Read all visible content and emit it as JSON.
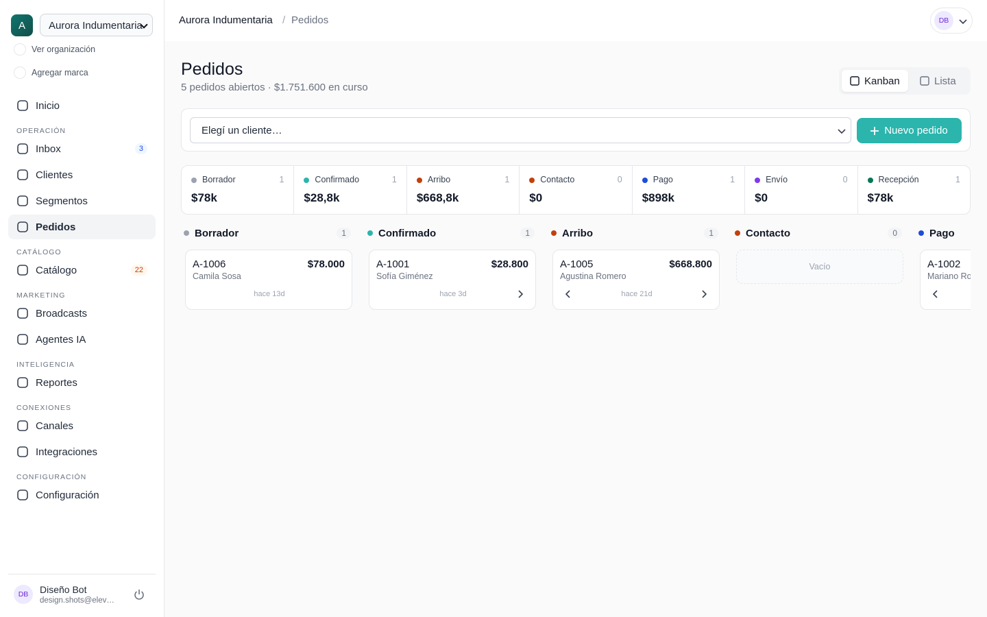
{
  "sidebar": {
    "org_initial": "A",
    "org_select": "Aurora Indumentaria",
    "links": [
      "Ver organización",
      "Agregar marca"
    ],
    "home": "Inicio",
    "sections": [
      {
        "title": "OPERACIÓN",
        "items": [
          {
            "label": "Inbox",
            "badge": 3
          },
          {
            "label": "Clientes"
          },
          {
            "label": "Segmentos"
          },
          {
            "label": "Pedidos",
            "active": true
          }
        ]
      },
      {
        "title": "CATÁLOGO",
        "items": [
          {
            "label": "Catálogo",
            "badge": 22
          }
        ]
      },
      {
        "title": "MARKETING",
        "items": [
          {
            "label": "Broadcasts"
          },
          {
            "label": "Agentes IA"
          }
        ]
      },
      {
        "title": "INTELIGENCIA",
        "items": [
          {
            "label": "Reportes"
          }
        ]
      },
      {
        "title": "CONEXIONES",
        "items": [
          {
            "label": "Canales"
          },
          {
            "label": "Integraciones"
          }
        ]
      },
      {
        "title": "CONFIGURACIÓN",
        "items": [
          {
            "label": "Configuración"
          }
        ]
      }
    ],
    "user": {
      "initials": "DB",
      "name": "Diseño Bot",
      "email": "design.shots@elev…"
    }
  },
  "header": {
    "breadcrumb": [
      "Aurora Indumentaria",
      "Pedidos"
    ],
    "avatar": "DB"
  },
  "page": {
    "title": "Pedidos",
    "subtitle": "5 pedidos abiertos · $1.751.600 en curso",
    "views": [
      "Kanban",
      "Lista"
    ]
  },
  "filter": {
    "placeholder": "Elegí un cliente…",
    "button": "Nuevo pedido"
  },
  "stages": [
    {
      "name": "Borrador",
      "color": "#9ca3af",
      "count": 1,
      "total": "$78k"
    },
    {
      "name": "Confirmado",
      "color": "#2bb5ad",
      "count": 1,
      "total": "$28,8k"
    },
    {
      "name": "Arribo",
      "color": "#c2410c",
      "count": 1,
      "total": "$668,8k"
    },
    {
      "name": "Contacto",
      "color": "#c2410c",
      "count": 0,
      "total": "$0"
    },
    {
      "name": "Pago",
      "color": "#1d4ed8",
      "count": 1,
      "total": "$898k"
    },
    {
      "name": "Envío",
      "color": "#7c3aed",
      "count": 0,
      "total": "$0"
    },
    {
      "name": "Recepción",
      "color": "#047857",
      "count": 1,
      "total": "$78k"
    }
  ],
  "columns": [
    {
      "name": "Borrador",
      "color": "#9ca3af",
      "count": 1,
      "cards": [
        {
          "id": "A-1006",
          "amount": "$78.000",
          "customer": "Camila Sosa",
          "age": "hace 13d"
        }
      ]
    },
    {
      "name": "Confirmado",
      "color": "#2bb5ad",
      "count": 1,
      "cards": [
        {
          "id": "A-1001",
          "amount": "$28.800",
          "customer": "Sofía Giménez",
          "age": "hace 3d"
        }
      ]
    },
    {
      "name": "Arribo",
      "color": "#c2410c",
      "count": 1,
      "cards": [
        {
          "id": "A-1005",
          "amount": "$668.800",
          "customer": "Agustina Romero",
          "age": "hace 21d"
        }
      ]
    },
    {
      "name": "Contacto",
      "color": "#c2410c",
      "count": 0,
      "empty": "Vacío",
      "cards": []
    },
    {
      "name": "Pago",
      "color": "#1d4ed8",
      "cards": [
        {
          "id": "A-1002",
          "customer": "Mariano Ro"
        }
      ]
    }
  ]
}
